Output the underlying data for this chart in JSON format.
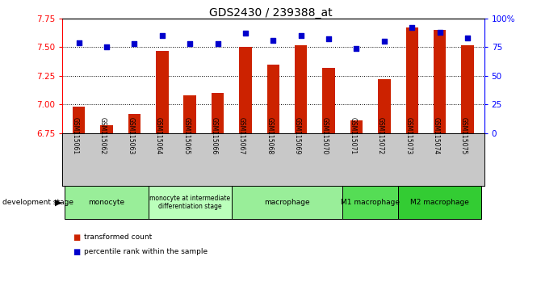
{
  "title": "GDS2430 / 239388_at",
  "samples": [
    "GSM115061",
    "GSM115062",
    "GSM115063",
    "GSM115064",
    "GSM115065",
    "GSM115066",
    "GSM115067",
    "GSM115068",
    "GSM115069",
    "GSM115070",
    "GSM115071",
    "GSM115072",
    "GSM115073",
    "GSM115074",
    "GSM115075"
  ],
  "bar_values": [
    6.98,
    6.82,
    6.92,
    7.47,
    7.08,
    7.1,
    7.5,
    7.35,
    7.52,
    7.32,
    6.86,
    7.22,
    7.67,
    7.65,
    7.52
  ],
  "dot_values": [
    79,
    75,
    78,
    85,
    78,
    78,
    87,
    81,
    85,
    82,
    74,
    80,
    92,
    88,
    83
  ],
  "ylim_left": [
    6.75,
    7.75
  ],
  "ylim_right": [
    0,
    100
  ],
  "yticks_left": [
    6.75,
    7.0,
    7.25,
    7.5,
    7.75
  ],
  "yticks_right": [
    0,
    25,
    50,
    75,
    100
  ],
  "bar_color": "#cc2200",
  "dot_color": "#0000cc",
  "groups": [
    {
      "label": "monocyte",
      "start": 0,
      "end": 3,
      "color": "#99ee99"
    },
    {
      "label": "monocyte at intermediate\ndifferentiation stage",
      "start": 3,
      "end": 6,
      "color": "#bbffbb"
    },
    {
      "label": "macrophage",
      "start": 6,
      "end": 10,
      "color": "#99ee99"
    },
    {
      "label": "M1 macrophage",
      "start": 10,
      "end": 12,
      "color": "#55dd55"
    },
    {
      "label": "M2 macrophage",
      "start": 12,
      "end": 15,
      "color": "#33cc33"
    }
  ],
  "legend_items": [
    {
      "label": "transformed count",
      "color": "#cc2200"
    },
    {
      "label": "percentile rank within the sample",
      "color": "#0000cc"
    }
  ]
}
